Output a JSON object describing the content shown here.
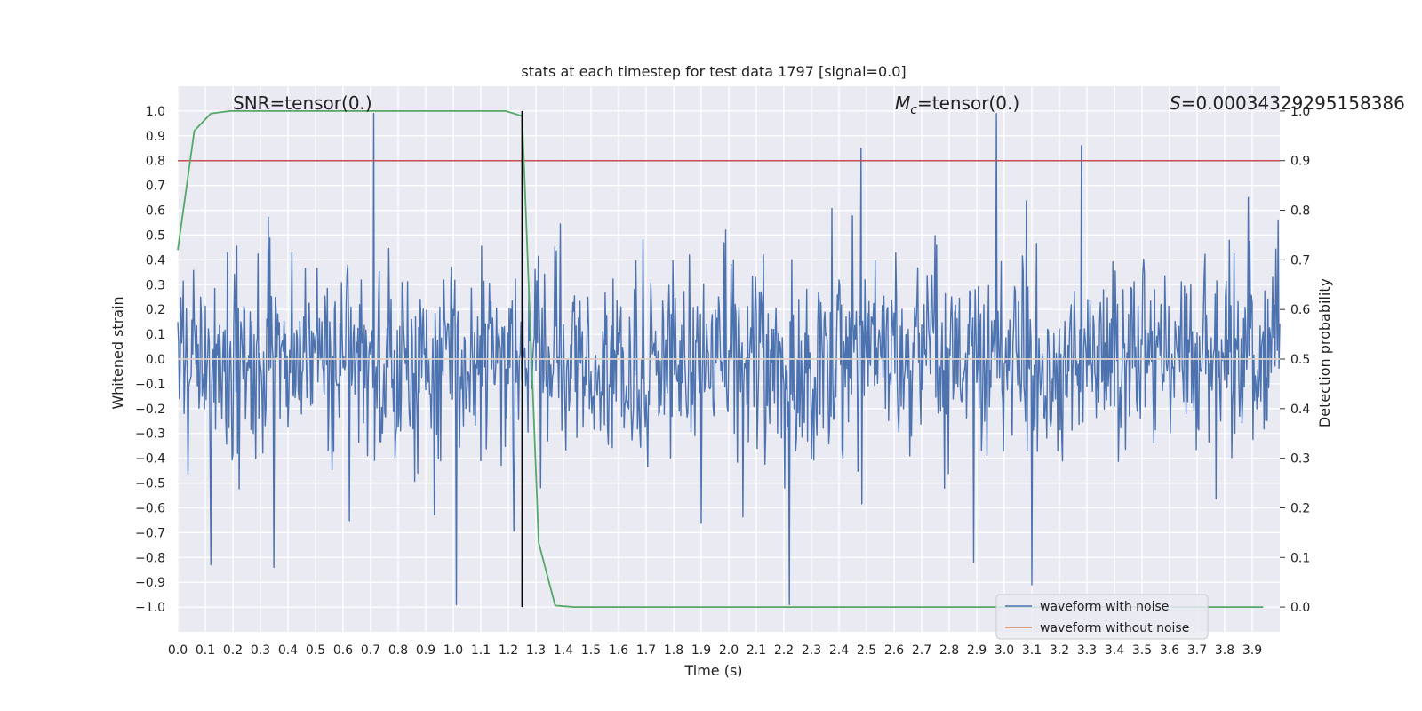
{
  "chart_data": {
    "type": "line",
    "title": "stats at each timestep for test data 1797 [signal=0.0]",
    "xlabel": "Time (s)",
    "ylabel": "Whitened strain",
    "y2label": "Detection probability",
    "xlim": [
      0.0,
      4.0
    ],
    "ylim": [
      -1.1,
      1.1
    ],
    "y2lim": [
      -0.05,
      1.05
    ],
    "x_ticks": [
      0.0,
      0.1,
      0.2,
      0.3,
      0.4,
      0.5,
      0.6,
      0.7,
      0.8,
      0.9,
      1.0,
      1.1,
      1.2,
      1.3,
      1.4,
      1.5,
      1.6,
      1.7,
      1.8,
      1.9,
      2.0,
      2.1,
      2.2,
      2.3,
      2.4,
      2.5,
      2.6,
      2.7,
      2.8,
      2.9,
      3.0,
      3.1,
      3.2,
      3.3,
      3.4,
      3.5,
      3.6,
      3.7,
      3.8,
      3.9
    ],
    "x_tick_labels": [
      "0.0",
      "0.1",
      "0.2",
      "0.3",
      "0.4",
      "0.5",
      "0.6",
      "0.7",
      "0.8",
      "0.9",
      "1.0",
      "1.1",
      "1.2",
      "1.3",
      "1.4",
      "1.5",
      "1.6",
      "1.7",
      "1.8",
      "1.9",
      "2.0",
      "2.1",
      "2.2",
      "2.3",
      "2.4",
      "2.5",
      "2.6",
      "2.7",
      "2.8",
      "2.9",
      "3.0",
      "3.1",
      "3.2",
      "3.3",
      "3.4",
      "3.5",
      "3.6",
      "3.7",
      "3.8",
      "3.9"
    ],
    "y_ticks": [
      1.0,
      0.9,
      0.8,
      0.7,
      0.6,
      0.5,
      0.4,
      0.3,
      0.2,
      0.1,
      0.0,
      -0.1,
      -0.2,
      -0.3,
      -0.4,
      -0.5,
      -0.6,
      -0.7,
      -0.8,
      -0.9,
      -1.0
    ],
    "y_tick_labels": [
      "1.0",
      "0.9",
      "0.8",
      "0.7",
      "0.6",
      "0.5",
      "0.4",
      "0.3",
      "0.2",
      "0.1",
      "0.0",
      "−0.1",
      "−0.2",
      "−0.3",
      "−0.4",
      "−0.5",
      "−0.6",
      "−0.7",
      "−0.8",
      "−0.9",
      "−1.0"
    ],
    "y2_ticks": [
      1.0,
      0.9,
      0.8,
      0.7,
      0.6,
      0.5,
      0.4,
      0.3,
      0.2,
      0.1,
      0.0
    ],
    "y2_tick_labels": [
      "1.0",
      "0.9",
      "0.8",
      "0.7",
      "0.6",
      "0.5",
      "0.4",
      "0.3",
      "0.2",
      "0.1",
      "0.0"
    ],
    "grid": true,
    "legend_position": "lower-right",
    "annotations": {
      "snr": "SNR=tensor(0.)",
      "mc_symbol": "M",
      "mc_subscript": "c",
      "mc_value": "=tensor(0.)",
      "s_symbol": "S",
      "s_value": "=0.00034329295158386"
    },
    "series": [
      {
        "name": "waveform with noise",
        "color": "#4c72b0",
        "axis": "left",
        "style": "noise",
        "x_range": [
          0.0,
          4.0
        ],
        "amplitude_typical": 0.4,
        "extremes": [
          {
            "x": 0.71,
            "y": 0.99
          },
          {
            "x": 1.01,
            "y": -0.99
          },
          {
            "x": 2.22,
            "y": -0.99
          },
          {
            "x": 2.97,
            "y": 0.99
          },
          {
            "x": 3.1,
            "y": -0.91
          },
          {
            "x": 0.35,
            "y": -0.84
          },
          {
            "x": 0.12,
            "y": -0.83
          },
          {
            "x": 2.48,
            "y": 0.85
          },
          {
            "x": 3.28,
            "y": 0.86
          }
        ]
      },
      {
        "name": "waveform without noise",
        "color": "#dd8452",
        "axis": "left",
        "x": [
          0.0,
          4.0
        ],
        "y": [
          0.0,
          0.0
        ]
      },
      {
        "name": "Detection probability",
        "color": "#55a868",
        "axis": "right",
        "x": [
          0.0,
          0.06,
          0.12,
          0.19,
          0.25,
          0.5,
          1.0,
          1.19,
          1.25,
          1.31,
          1.37,
          1.44,
          1.5,
          2.0,
          3.0,
          3.94
        ],
        "y": [
          0.72,
          0.96,
          0.995,
          1.0,
          1.0,
          1.0,
          1.0,
          1.0,
          0.99,
          0.13,
          0.003,
          0.0,
          0.0,
          0.0,
          0.0,
          0.0
        ]
      }
    ],
    "threshold_line": {
      "axis": "right",
      "y": 0.9,
      "color": "#c44e52"
    },
    "vertical_marker": {
      "x": 1.25,
      "y_range": [
        -1.0,
        1.0
      ],
      "color": "#000000"
    }
  }
}
